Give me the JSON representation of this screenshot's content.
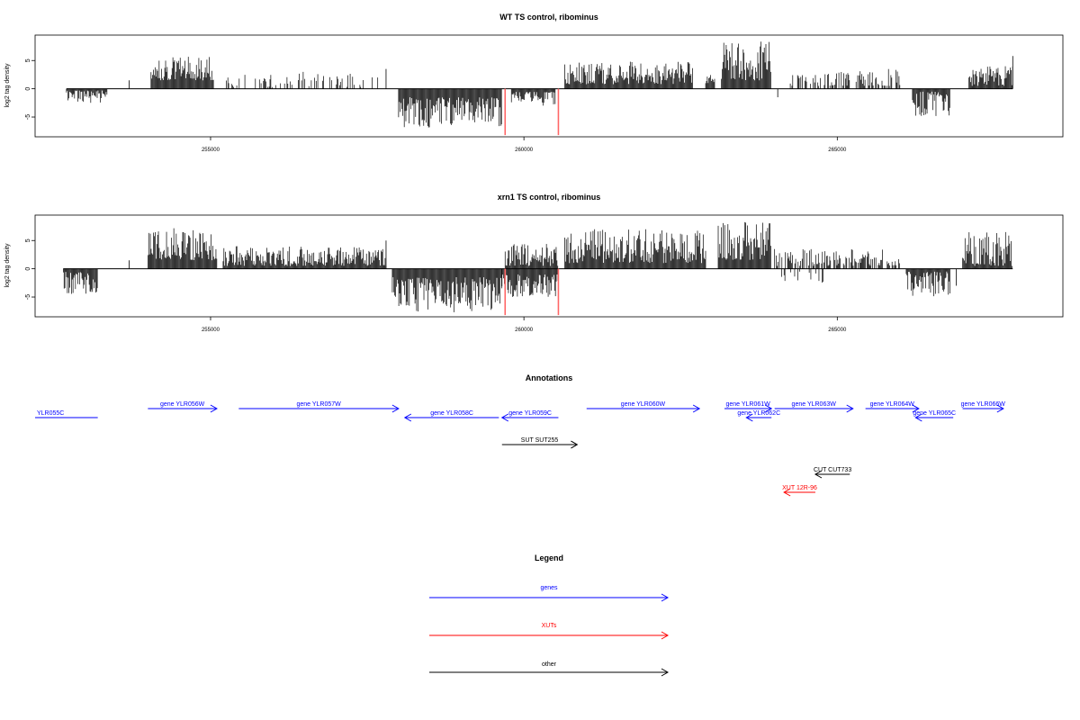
{
  "chart_data": [
    {
      "type": "bar",
      "title": "WT TS control, ribominus",
      "xlabel": "",
      "ylabel": "log2 tag density",
      "xlim": [
        252200,
        268600
      ],
      "ylim": [
        -8.5,
        9.5
      ],
      "xticks": [
        255000,
        260000,
        265000
      ],
      "xtick_labels": [
        "255000",
        "260000",
        "265000"
      ],
      "yticks": [
        -5,
        0,
        5
      ],
      "ytick_labels": [
        "-5",
        "0",
        "5"
      ],
      "bar_color": "#000000",
      "marker_color": "#ff6666",
      "markers": [
        {
          "x": 259700,
          "y": -8.2
        },
        {
          "x": 260550,
          "y": -8.2
        }
      ],
      "segments": [
        {
          "from": 252700,
          "to": 253350,
          "min": 0.3,
          "max": 2.5,
          "sign": -1,
          "seed": 11
        },
        {
          "from": 253700,
          "to": 253700,
          "min": 1.5,
          "max": 1.5,
          "sign": 1,
          "seed": 12
        },
        {
          "from": 254050,
          "to": 255050,
          "min": 1.5,
          "max": 5.8,
          "sign": 1,
          "seed": 13
        },
        {
          "from": 255250,
          "to": 257700,
          "min": 0.3,
          "max": 3.0,
          "sign": 1,
          "seed": 14,
          "density": 0.33
        },
        {
          "from": 257800,
          "to": 257800,
          "min": 3.5,
          "max": 3.5,
          "sign": 1,
          "seed": 15
        },
        {
          "from": 258000,
          "to": 259650,
          "min": 1.5,
          "max": 7.0,
          "sign": -1,
          "seed": 16
        },
        {
          "from": 259800,
          "to": 260500,
          "min": 0.5,
          "max": 3.0,
          "sign": -1,
          "seed": 17
        },
        {
          "from": 260650,
          "to": 262700,
          "min": 0.8,
          "max": 4.8,
          "sign": 1,
          "seed": 18
        },
        {
          "from": 262900,
          "to": 263050,
          "min": 1.0,
          "max": 2.5,
          "sign": 1,
          "seed": 19
        },
        {
          "from": 263150,
          "to": 263950,
          "min": 1.5,
          "max": 8.5,
          "sign": 1,
          "seed": 20
        },
        {
          "from": 264050,
          "to": 264050,
          "min": 1.5,
          "max": 1.5,
          "sign": -1,
          "seed": 21
        },
        {
          "from": 264250,
          "to": 265200,
          "min": 0.5,
          "max": 3.0,
          "sign": 1,
          "seed": 22,
          "density": 0.5
        },
        {
          "from": 265300,
          "to": 266000,
          "min": 0.5,
          "max": 3.5,
          "sign": 1,
          "seed": 23,
          "density": 0.55
        },
        {
          "from": 266200,
          "to": 266800,
          "min": 0.5,
          "max": 5.0,
          "sign": -1,
          "seed": 24
        },
        {
          "from": 267100,
          "to": 267800,
          "min": 0.5,
          "max": 4.0,
          "sign": 1,
          "seed": 25
        },
        {
          "from": 267800,
          "to": 267800,
          "min": 5.8,
          "max": 5.8,
          "sign": 1,
          "seed": 26
        }
      ]
    },
    {
      "type": "bar",
      "title": "xrn1 TS control, ribominus",
      "xlabel": "",
      "ylabel": "log2 tag density",
      "xlim": [
        252200,
        268600
      ],
      "ylim": [
        -8.5,
        9.5
      ],
      "xticks": [
        255000,
        260000,
        265000
      ],
      "xtick_labels": [
        "255000",
        "260000",
        "265000"
      ],
      "yticks": [
        -5,
        0,
        5
      ],
      "ytick_labels": [
        "-5",
        "0",
        "5"
      ],
      "bar_color": "#000000",
      "marker_color": "#ff6666",
      "markers": [
        {
          "x": 259700,
          "y": -8.2
        },
        {
          "x": 260550,
          "y": -8.2
        }
      ],
      "segments": [
        {
          "from": 252650,
          "to": 253200,
          "min": 0.5,
          "max": 4.5,
          "sign": -1,
          "seed": 31
        },
        {
          "from": 253700,
          "to": 253700,
          "min": 1.5,
          "max": 1.5,
          "sign": 1,
          "seed": 32
        },
        {
          "from": 254000,
          "to": 255100,
          "min": 1.5,
          "max": 7.2,
          "sign": 1,
          "seed": 33
        },
        {
          "from": 255200,
          "to": 257800,
          "min": 0.5,
          "max": 4.0,
          "sign": 1,
          "seed": 34
        },
        {
          "from": 257800,
          "to": 257800,
          "min": 5.0,
          "max": 5.0,
          "sign": 1,
          "seed": 35
        },
        {
          "from": 257900,
          "to": 259650,
          "min": 1.5,
          "max": 7.8,
          "sign": -1,
          "seed": 36
        },
        {
          "from": 259650,
          "to": 260550,
          "min": 1.0,
          "max": 5.0,
          "sign": -1,
          "seed": 37
        },
        {
          "from": 259700,
          "to": 260550,
          "min": 0.5,
          "max": 4.5,
          "sign": 1,
          "seed": 38
        },
        {
          "from": 260650,
          "to": 262900,
          "min": 1.0,
          "max": 7.0,
          "sign": 1,
          "seed": 39
        },
        {
          "from": 263100,
          "to": 263950,
          "min": 1.5,
          "max": 8.5,
          "sign": 1,
          "seed": 40
        },
        {
          "from": 264000,
          "to": 266000,
          "min": 0.5,
          "max": 3.5,
          "sign": 1,
          "seed": 41,
          "density": 0.6
        },
        {
          "from": 264100,
          "to": 264800,
          "min": 0.5,
          "max": 2.5,
          "sign": -1,
          "seed": 42,
          "density": 0.2
        },
        {
          "from": 266100,
          "to": 266800,
          "min": 0.5,
          "max": 5.0,
          "sign": -1,
          "seed": 43
        },
        {
          "from": 266900,
          "to": 266900,
          "min": 3.0,
          "max": 3.0,
          "sign": -1,
          "seed": 44
        },
        {
          "from": 267000,
          "to": 267800,
          "min": 0.5,
          "max": 6.5,
          "sign": 1,
          "seed": 45
        }
      ]
    },
    {
      "type": "annotation-track",
      "title": "Annotations",
      "xlim": [
        252200,
        268600
      ],
      "features": [
        {
          "label": "YLR055C",
          "from": 252200,
          "to": 253200,
          "strand": "-",
          "kind": "gene",
          "row": 1
        },
        {
          "label": "gene YLR056W",
          "from": 254000,
          "to": 255100,
          "strand": "+",
          "kind": "gene",
          "row": 0
        },
        {
          "label": "gene YLR057W",
          "from": 255450,
          "to": 258000,
          "strand": "+",
          "kind": "gene",
          "row": 0
        },
        {
          "label": "gene YLR058C",
          "from": 258100,
          "to": 259600,
          "strand": "-",
          "kind": "gene",
          "row": 1
        },
        {
          "label": "gene YLR059C",
          "from": 259650,
          "to": 260550,
          "strand": "-",
          "kind": "gene",
          "row": 1
        },
        {
          "label": "gene YLR060W",
          "from": 261000,
          "to": 262800,
          "strand": "+",
          "kind": "gene",
          "row": 0
        },
        {
          "label": "gene YLR061W",
          "from": 263200,
          "to": 263950,
          "strand": "+",
          "kind": "gene",
          "row": 0
        },
        {
          "label": "gene YLR062C",
          "from": 263550,
          "to": 263950,
          "strand": "-",
          "kind": "gene",
          "row": 1
        },
        {
          "label": "gene YLR063W",
          "from": 264000,
          "to": 265250,
          "strand": "+",
          "kind": "gene",
          "row": 0
        },
        {
          "label": "gene YLR064W",
          "from": 265450,
          "to": 266300,
          "strand": "+",
          "kind": "gene",
          "row": 0
        },
        {
          "label": "gene YLR065C",
          "from": 266250,
          "to": 266850,
          "strand": "-",
          "kind": "gene",
          "row": 1
        },
        {
          "label": "gene YLR066W",
          "from": 267000,
          "to": 267650,
          "strand": "+",
          "kind": "gene",
          "row": 0
        },
        {
          "label": "SUT SUT255",
          "from": 259650,
          "to": 260850,
          "strand": "+",
          "kind": "other",
          "row": 2
        },
        {
          "label": "CUT CUT733",
          "from": 264650,
          "to": 265200,
          "strand": "-",
          "kind": "other",
          "row": 3
        },
        {
          "label": "XUT 12R-96",
          "from": 264150,
          "to": 264650,
          "strand": "-",
          "kind": "xut",
          "row": 4
        }
      ]
    }
  ],
  "legend": {
    "title": "Legend",
    "entries": [
      {
        "label": "genes",
        "color": "#0000ff"
      },
      {
        "label": "XUTs",
        "color": "#ff0000"
      },
      {
        "label": "other",
        "color": "#000000"
      }
    ]
  },
  "colors": {
    "gene": "#0000ff",
    "xut": "#ff0000",
    "other": "#000000"
  }
}
